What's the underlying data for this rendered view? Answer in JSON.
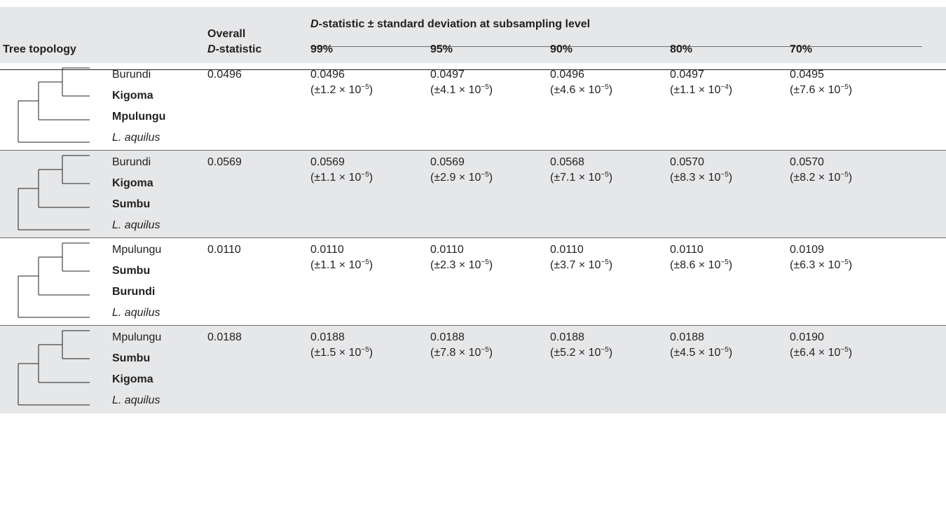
{
  "header": {
    "tree_topology": "Tree topology",
    "overall_line1": "Overall",
    "overall_line2_italic": "D",
    "overall_line2_rest": "-statistic",
    "span_italic": "D",
    "span_rest": "-statistic ± standard deviation at subsampling level",
    "levels": [
      "99%",
      "95%",
      "90%",
      "80%",
      "70%"
    ]
  },
  "rows": [
    {
      "taxa": [
        {
          "label": "Burundi",
          "style": "normal"
        },
        {
          "label": "Kigoma",
          "style": "bold"
        },
        {
          "label": "Mpulungu",
          "style": "bold"
        },
        {
          "label": "L. aquilus",
          "style": "italic"
        }
      ],
      "overall": "0.0496",
      "values": [
        {
          "d": "0.0496",
          "sd_mant": "(±1.2 × 10",
          "sd_exp": "−5",
          "sd_close": ")"
        },
        {
          "d": "0.0497",
          "sd_mant": "(±4.1 × 10",
          "sd_exp": "−5",
          "sd_close": ")"
        },
        {
          "d": "0.0496",
          "sd_mant": "(±4.6 × 10",
          "sd_exp": "−5",
          "sd_close": ")"
        },
        {
          "d": "0.0497",
          "sd_mant": "(±1.1 × 10",
          "sd_exp": "−4",
          "sd_close": ")"
        },
        {
          "d": "0.0495",
          "sd_mant": "(±7.6 × 10",
          "sd_exp": "−5",
          "sd_close": ")"
        }
      ]
    },
    {
      "taxa": [
        {
          "label": "Burundi",
          "style": "normal"
        },
        {
          "label": "Kigoma",
          "style": "bold"
        },
        {
          "label": "Sumbu",
          "style": "bold"
        },
        {
          "label": "L. aquilus",
          "style": "italic"
        }
      ],
      "overall": "0.0569",
      "values": [
        {
          "d": "0.0569",
          "sd_mant": "(±1.1 × 10",
          "sd_exp": "−5",
          "sd_close": ")"
        },
        {
          "d": "0.0569",
          "sd_mant": "(±2.9 × 10",
          "sd_exp": "−5",
          "sd_close": ")"
        },
        {
          "d": "0.0568",
          "sd_mant": "(±7.1 × 10",
          "sd_exp": "−5",
          "sd_close": ")"
        },
        {
          "d": "0.0570",
          "sd_mant": "(±8.3 × 10",
          "sd_exp": "−5",
          "sd_close": ")"
        },
        {
          "d": "0.0570",
          "sd_mant": "(±8.2 × 10",
          "sd_exp": "−5",
          "sd_close": ")"
        }
      ]
    },
    {
      "taxa": [
        {
          "label": "Mpulungu",
          "style": "normal"
        },
        {
          "label": "Sumbu",
          "style": "bold"
        },
        {
          "label": "Burundi",
          "style": "bold"
        },
        {
          "label": "L. aquilus",
          "style": "italic"
        }
      ],
      "overall": "0.0110",
      "values": [
        {
          "d": "0.0110",
          "sd_mant": "(±1.1 × 10",
          "sd_exp": "−5",
          "sd_close": ")"
        },
        {
          "d": "0.0110",
          "sd_mant": "(±2.3 × 10",
          "sd_exp": "−5",
          "sd_close": ")"
        },
        {
          "d": "0.0110",
          "sd_mant": "(±3.7 × 10",
          "sd_exp": "−5",
          "sd_close": ")"
        },
        {
          "d": "0.0110",
          "sd_mant": "(±8.6 × 10",
          "sd_exp": "−5",
          "sd_close": ")"
        },
        {
          "d": "0.0109",
          "sd_mant": "(±6.3 × 10",
          "sd_exp": "−5",
          "sd_close": ")"
        }
      ]
    },
    {
      "taxa": [
        {
          "label": "Mpulungu",
          "style": "normal"
        },
        {
          "label": "Sumbu",
          "style": "bold"
        },
        {
          "label": "Kigoma",
          "style": "bold"
        },
        {
          "label": "L. aquilus",
          "style": "italic"
        }
      ],
      "overall": "0.0188",
      "values": [
        {
          "d": "0.0188",
          "sd_mant": "(±1.5 × 10",
          "sd_exp": "−5",
          "sd_close": ")"
        },
        {
          "d": "0.0188",
          "sd_mant": "(±7.8 × 10",
          "sd_exp": "−5",
          "sd_close": ")"
        },
        {
          "d": "0.0188",
          "sd_mant": "(±5.2 × 10",
          "sd_exp": "−5",
          "sd_close": ")"
        },
        {
          "d": "0.0188",
          "sd_mant": "(±4.5 × 10",
          "sd_exp": "−5",
          "sd_close": ")"
        },
        {
          "d": "0.0190",
          "sd_mant": "(±6.4 × 10",
          "sd_exp": "−5",
          "sd_close": ")"
        }
      ]
    }
  ]
}
